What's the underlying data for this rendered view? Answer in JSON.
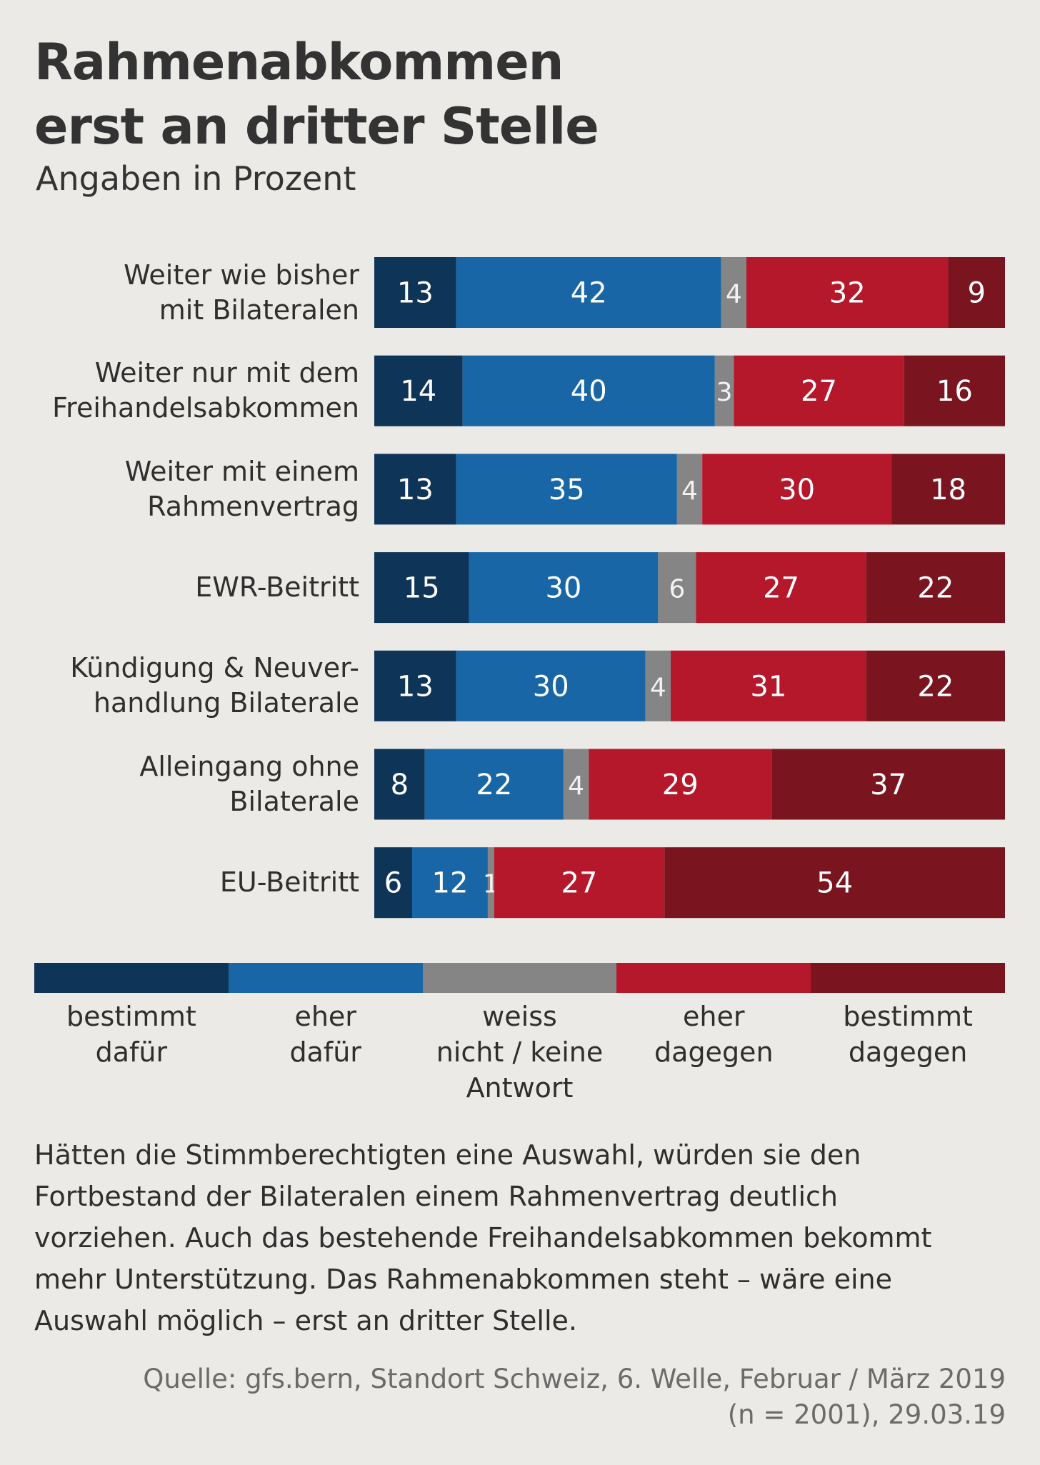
{
  "header": {
    "title_lines": [
      "Rahmenabkommen",
      "erst an dritter Stelle"
    ],
    "subtitle": "Angaben in Prozent"
  },
  "legend": {
    "items": [
      {
        "lines": [
          "bestimmt",
          "dafür"
        ]
      },
      {
        "lines": [
          "eher",
          "dafür"
        ]
      },
      {
        "lines": [
          "weiss",
          "nicht / keine",
          "Antwort"
        ]
      },
      {
        "lines": [
          "eher",
          "dagegen"
        ]
      },
      {
        "lines": [
          "bestimmt",
          "dagegen"
        ]
      }
    ]
  },
  "description": {
    "lines": [
      "Hätten die Stimmberechtigten eine Auswahl, würden sie den",
      "Fortbestand der Bilateralen einem Rahmenvertrag deutlich",
      "vorziehen. Auch das bestehende Freihandelsabkommen bekommt",
      "mehr Unterstützung. Das Rahmenabkommen steht – wäre eine",
      "Auswahl möglich – erst an dritter Stelle."
    ]
  },
  "source": {
    "lines": [
      "Quelle: gfs.bern, Standort Schweiz, 6. Welle, Februar / März 2019",
      "(n = 2001), 29.03.19"
    ]
  },
  "chart_data": {
    "type": "bar",
    "orientation": "horizontal",
    "stacked": true,
    "xlim": [
      0,
      100
    ],
    "categories": [
      [
        "Weiter wie bisher",
        "mit Bilateralen"
      ],
      [
        "Weiter nur mit dem",
        "Freihandelsabkommen"
      ],
      [
        "Weiter mit einem",
        "Rahmenvertrag"
      ],
      [
        "EWR-Beitritt"
      ],
      [
        "Kündigung & Neuver-",
        "handlung Bilaterale"
      ],
      [
        "Alleingang ohne",
        "Bilaterale"
      ],
      [
        "EU-Beitritt"
      ]
    ],
    "series": [
      {
        "name": "bestimmt dafür",
        "color": "#0e3458",
        "values": [
          13,
          14,
          13,
          15,
          13,
          8,
          6
        ]
      },
      {
        "name": "eher dafür",
        "color": "#1866a6",
        "values": [
          42,
          40,
          35,
          30,
          30,
          22,
          12
        ]
      },
      {
        "name": "weiss nicht / keine Antwort",
        "color": "#868586",
        "values": [
          4,
          3,
          4,
          6,
          4,
          4,
          1
        ]
      },
      {
        "name": "eher dagegen",
        "color": "#b5172b",
        "values": [
          32,
          27,
          30,
          27,
          31,
          29,
          27
        ]
      },
      {
        "name": "bestimmt dagegen",
        "color": "#7a1520",
        "values": [
          9,
          16,
          18,
          22,
          22,
          37,
          54
        ]
      }
    ],
    "data_labels": true,
    "grid": false,
    "legend_position": "bottom"
  }
}
